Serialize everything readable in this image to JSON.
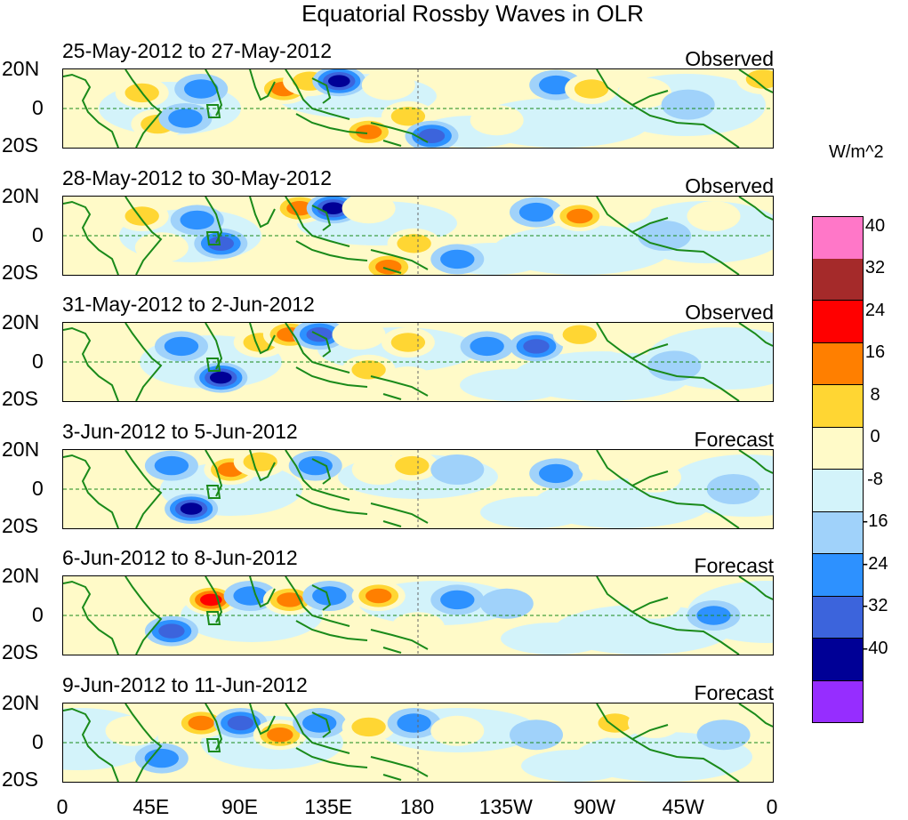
{
  "title": "Equatorial Rossby Waves in OLR",
  "panels": [
    {
      "dates": "25-May-2012 to 27-May-2012",
      "kind": "Observed"
    },
    {
      "dates": "28-May-2012 to 30-May-2012",
      "kind": "Observed"
    },
    {
      "dates": "31-May-2012 to 2-Jun-2012",
      "kind": "Observed"
    },
    {
      "dates": "3-Jun-2012 to 5-Jun-2012",
      "kind": "Forecast"
    },
    {
      "dates": "6-Jun-2012 to 8-Jun-2012",
      "kind": "Forecast"
    },
    {
      "dates": "9-Jun-2012 to 11-Jun-2012",
      "kind": "Forecast"
    }
  ],
  "lat_labels": {
    "north": "20N",
    "equator": "0",
    "south": "20S"
  },
  "lon_labels": [
    "0",
    "45E",
    "90E",
    "135E",
    "180",
    "135W",
    "90W",
    "45W",
    "0"
  ],
  "colorbar": {
    "units": "W/m^2",
    "labels": [
      "40",
      "32",
      "24",
      "16",
      "8",
      "0",
      "-8",
      "-16",
      "-24",
      "-32",
      "-40"
    ],
    "colors": [
      "#ff77c8",
      "#a52a2a",
      "#ff0000",
      "#ff7f00",
      "#ffd633",
      "#fffac8",
      "#d3f3fa",
      "#a0d2fa",
      "#2d91ff",
      "#3c64dc",
      "#000096",
      "#962dff"
    ]
  },
  "colors": {
    "land_outline": "#1a8a1a",
    "equator_line": "#1a8a1a",
    "background": "#fdfbd2"
  },
  "anomalies": [
    [
      {
        "lon": 40,
        "lat": 8,
        "v": 16
      },
      {
        "lon": 48,
        "lat": -8,
        "v": 16
      },
      {
        "lon": 62,
        "lat": -5,
        "v": -16
      },
      {
        "lon": 70,
        "lat": 10,
        "v": -16
      },
      {
        "lon": 112,
        "lat": 10,
        "v": 24
      },
      {
        "lon": 125,
        "lat": 14,
        "v": 16
      },
      {
        "lon": 140,
        "lat": 14,
        "v": -32
      },
      {
        "lon": 165,
        "lat": 12,
        "v": 8
      },
      {
        "lon": 155,
        "lat": -12,
        "v": 24
      },
      {
        "lon": 175,
        "lat": -4,
        "v": 16
      },
      {
        "lon": 187,
        "lat": -14,
        "v": -24
      },
      {
        "lon": 220,
        "lat": -6,
        "v": 8
      },
      {
        "lon": 250,
        "lat": 12,
        "v": -16
      },
      {
        "lon": 268,
        "lat": 10,
        "v": 16
      },
      {
        "lon": 295,
        "lat": 8,
        "v": 8
      },
      {
        "lon": 317,
        "lat": 2,
        "v": -8
      },
      {
        "lon": 355,
        "lat": 15,
        "v": 16
      }
    ],
    [
      {
        "lon": 40,
        "lat": 10,
        "v": 16
      },
      {
        "lon": 50,
        "lat": -6,
        "v": 8
      },
      {
        "lon": 68,
        "lat": 8,
        "v": -16
      },
      {
        "lon": 80,
        "lat": -4,
        "v": -24
      },
      {
        "lon": 120,
        "lat": 14,
        "v": 24
      },
      {
        "lon": 137,
        "lat": 14,
        "v": -32
      },
      {
        "lon": 155,
        "lat": 14,
        "v": 8
      },
      {
        "lon": 165,
        "lat": -16,
        "v": 24
      },
      {
        "lon": 178,
        "lat": -4,
        "v": 16
      },
      {
        "lon": 200,
        "lat": -12,
        "v": -16
      },
      {
        "lon": 240,
        "lat": 12,
        "v": -16
      },
      {
        "lon": 262,
        "lat": 10,
        "v": 24
      },
      {
        "lon": 285,
        "lat": 14,
        "v": 8
      },
      {
        "lon": 305,
        "lat": 0,
        "v": -8
      },
      {
        "lon": 330,
        "lat": 10,
        "v": 8
      }
    ],
    [
      {
        "lon": 30,
        "lat": 10,
        "v": 8
      },
      {
        "lon": 60,
        "lat": 8,
        "v": -16
      },
      {
        "lon": 80,
        "lat": -8,
        "v": -32
      },
      {
        "lon": 100,
        "lat": 10,
        "v": 16
      },
      {
        "lon": 115,
        "lat": 14,
        "v": 24
      },
      {
        "lon": 130,
        "lat": 14,
        "v": -24
      },
      {
        "lon": 150,
        "lat": 14,
        "v": 8
      },
      {
        "lon": 155,
        "lat": -4,
        "v": 16
      },
      {
        "lon": 175,
        "lat": 10,
        "v": 16
      },
      {
        "lon": 175,
        "lat": -10,
        "v": 8
      },
      {
        "lon": 215,
        "lat": 8,
        "v": -16
      },
      {
        "lon": 240,
        "lat": 8,
        "v": -24
      },
      {
        "lon": 262,
        "lat": 14,
        "v": 16
      },
      {
        "lon": 285,
        "lat": 12,
        "v": 8
      },
      {
        "lon": 310,
        "lat": -2,
        "v": -8
      }
    ],
    [
      {
        "lon": 35,
        "lat": 0,
        "v": 8
      },
      {
        "lon": 55,
        "lat": 12,
        "v": -16
      },
      {
        "lon": 65,
        "lat": -10,
        "v": -32
      },
      {
        "lon": 85,
        "lat": 10,
        "v": 24
      },
      {
        "lon": 100,
        "lat": 14,
        "v": 16
      },
      {
        "lon": 128,
        "lat": 12,
        "v": -16
      },
      {
        "lon": 160,
        "lat": 10,
        "v": 8
      },
      {
        "lon": 177,
        "lat": 12,
        "v": 16
      },
      {
        "lon": 200,
        "lat": 10,
        "v": -8
      },
      {
        "lon": 250,
        "lat": 8,
        "v": -16
      },
      {
        "lon": 275,
        "lat": 12,
        "v": 8
      },
      {
        "lon": 300,
        "lat": 6,
        "v": 8
      },
      {
        "lon": 340,
        "lat": 0,
        "v": -8
      }
    ],
    [
      {
        "lon": 25,
        "lat": 8,
        "v": 8
      },
      {
        "lon": 55,
        "lat": -8,
        "v": -24
      },
      {
        "lon": 75,
        "lat": 8,
        "v": 32
      },
      {
        "lon": 95,
        "lat": 10,
        "v": -16
      },
      {
        "lon": 115,
        "lat": 8,
        "v": 24
      },
      {
        "lon": 135,
        "lat": 10,
        "v": -16
      },
      {
        "lon": 160,
        "lat": 10,
        "v": 24
      },
      {
        "lon": 180,
        "lat": -6,
        "v": 8
      },
      {
        "lon": 200,
        "lat": 8,
        "v": -16
      },
      {
        "lon": 225,
        "lat": 6,
        "v": -8
      },
      {
        "lon": 255,
        "lat": 8,
        "v": 8
      },
      {
        "lon": 300,
        "lat": 6,
        "v": 8
      },
      {
        "lon": 330,
        "lat": 0,
        "v": -16
      }
    ],
    [
      {
        "lon": 35,
        "lat": 6,
        "v": 8
      },
      {
        "lon": 50,
        "lat": -8,
        "v": -16
      },
      {
        "lon": 70,
        "lat": 10,
        "v": 24
      },
      {
        "lon": 90,
        "lat": 10,
        "v": -24
      },
      {
        "lon": 110,
        "lat": 4,
        "v": 24
      },
      {
        "lon": 130,
        "lat": 10,
        "v": -16
      },
      {
        "lon": 155,
        "lat": 8,
        "v": 16
      },
      {
        "lon": 178,
        "lat": 10,
        "v": -16
      },
      {
        "lon": 200,
        "lat": 6,
        "v": 8
      },
      {
        "lon": 240,
        "lat": 4,
        "v": -8
      },
      {
        "lon": 280,
        "lat": 10,
        "v": 16
      },
      {
        "lon": 300,
        "lat": 10,
        "v": 8
      },
      {
        "lon": 335,
        "lat": 4,
        "v": -8
      }
    ]
  ]
}
